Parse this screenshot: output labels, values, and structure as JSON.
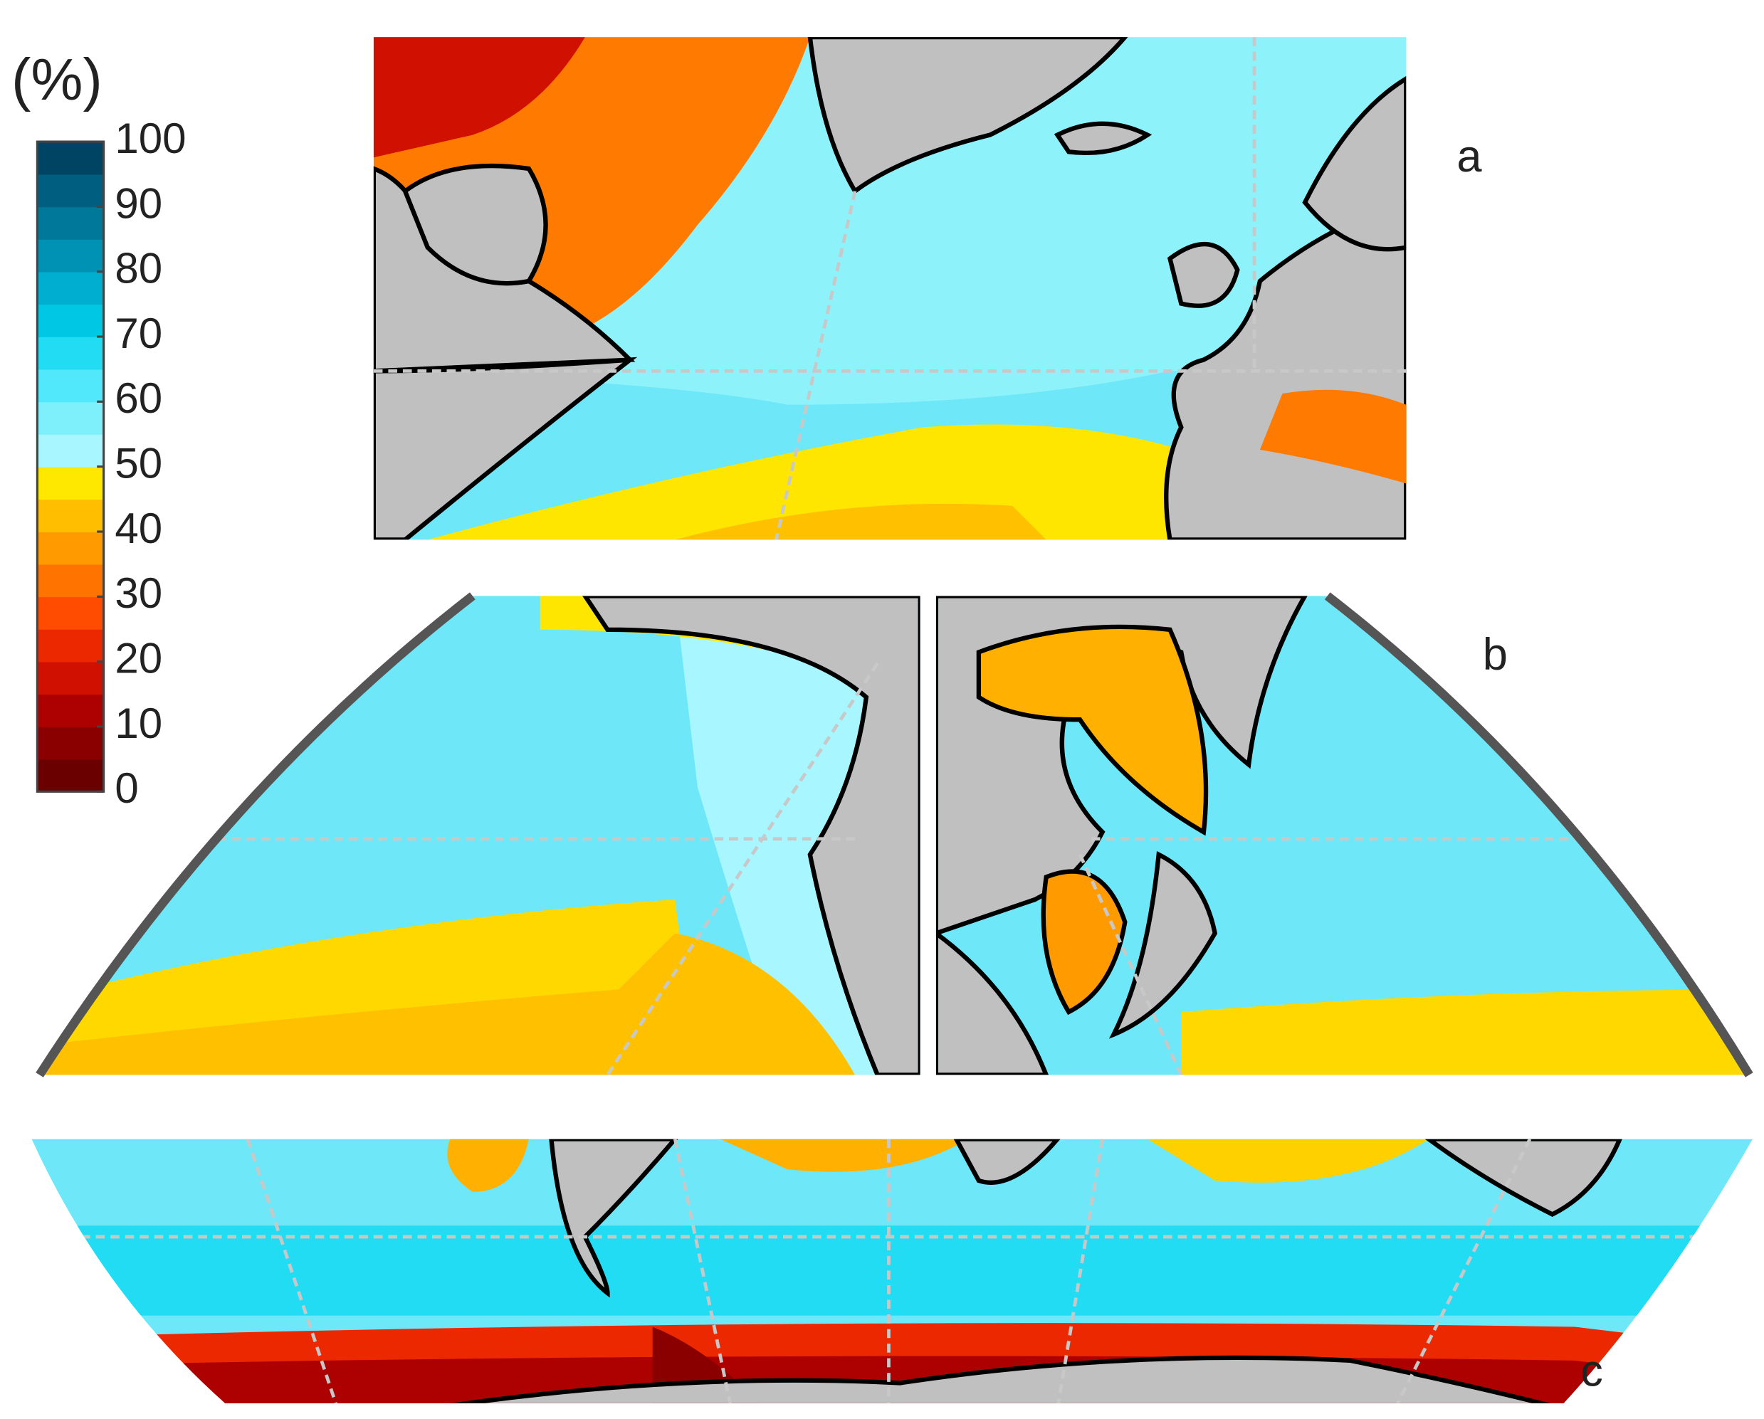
{
  "colorbar": {
    "title": "(%)",
    "lim": [
      0,
      100
    ],
    "ticks": [
      0,
      10,
      20,
      30,
      40,
      50,
      60,
      70,
      80,
      90,
      100
    ],
    "colors": [
      "#6a0000",
      "#8a0000",
      "#ad0000",
      "#d01000",
      "#ec2800",
      "#ff4c00",
      "#ff7400",
      "#ff9a00",
      "#ffbf00",
      "#ffe800",
      "#a8f6ff",
      "#7ef0fc",
      "#50e8fa",
      "#22dcf4",
      "#00c8e4",
      "#00aed0",
      "#0092b4",
      "#00789a",
      "#005e80",
      "#004464"
    ]
  },
  "panels": [
    {
      "label": "a"
    },
    {
      "label": "b"
    },
    {
      "label": "c"
    }
  ]
}
